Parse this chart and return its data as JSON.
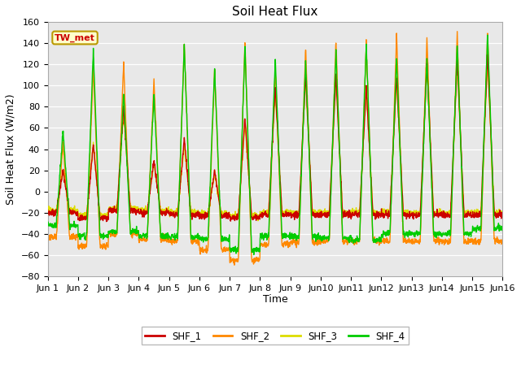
{
  "title": "Soil Heat Flux",
  "xlabel": "Time",
  "ylabel": "Soil Heat Flux (W/m2)",
  "ylim": [
    -80,
    160
  ],
  "yticks": [
    -80,
    -60,
    -40,
    -20,
    0,
    20,
    40,
    60,
    80,
    100,
    120,
    140,
    160
  ],
  "series_colors": {
    "SHF_1": "#cc0000",
    "SHF_2": "#ff8800",
    "SHF_3": "#dddd00",
    "SHF_4": "#00cc00"
  },
  "legend_labels": [
    "SHF_1",
    "SHF_2",
    "SHF_3",
    "SHF_4"
  ],
  "annotation_text": "TW_met",
  "annotation_bg": "#ffffcc",
  "annotation_edge": "#bb9900",
  "plot_bg": "#e8e8e8",
  "fig_bg": "#ffffff",
  "grid_color": "#ffffff",
  "title_fontsize": 11,
  "axis_label_fontsize": 9,
  "tick_fontsize": 8,
  "n_days": 15,
  "ppd": 144,
  "day_peaks_shf1": [
    20,
    45,
    80,
    30,
    50,
    20,
    70,
    100,
    110,
    110,
    100,
    110,
    120,
    125,
    130
  ],
  "day_peaks_shf2": [
    45,
    118,
    120,
    105,
    140,
    115,
    142,
    117,
    135,
    142,
    140,
    148,
    145,
    148,
    150
  ],
  "day_peaks_shf3": [
    20,
    45,
    75,
    28,
    45,
    18,
    65,
    95,
    108,
    108,
    98,
    108,
    118,
    120,
    125
  ],
  "day_peaks_shf4": [
    58,
    133,
    93,
    92,
    138,
    116,
    137,
    125,
    123,
    133,
    141,
    126,
    126,
    140,
    150
  ],
  "day_nights_shf1": [
    -20,
    -25,
    -18,
    -20,
    -22,
    -23,
    -25,
    -22,
    -22,
    -22,
    -22,
    -22,
    -22,
    -22,
    -22
  ],
  "day_nights_shf2": [
    -43,
    -52,
    -40,
    -45,
    -47,
    -55,
    -65,
    -50,
    -48,
    -47,
    -47,
    -47,
    -47,
    -47,
    -47
  ],
  "day_nights_shf3": [
    -18,
    -22,
    -16,
    -18,
    -20,
    -21,
    -23,
    -20,
    -20,
    -20,
    -20,
    -20,
    -20,
    -20,
    -20
  ],
  "day_nights_shf4": [
    -32,
    -42,
    -38,
    -42,
    -43,
    -45,
    -55,
    -42,
    -43,
    -44,
    -46,
    -40,
    -40,
    -40,
    -35
  ]
}
